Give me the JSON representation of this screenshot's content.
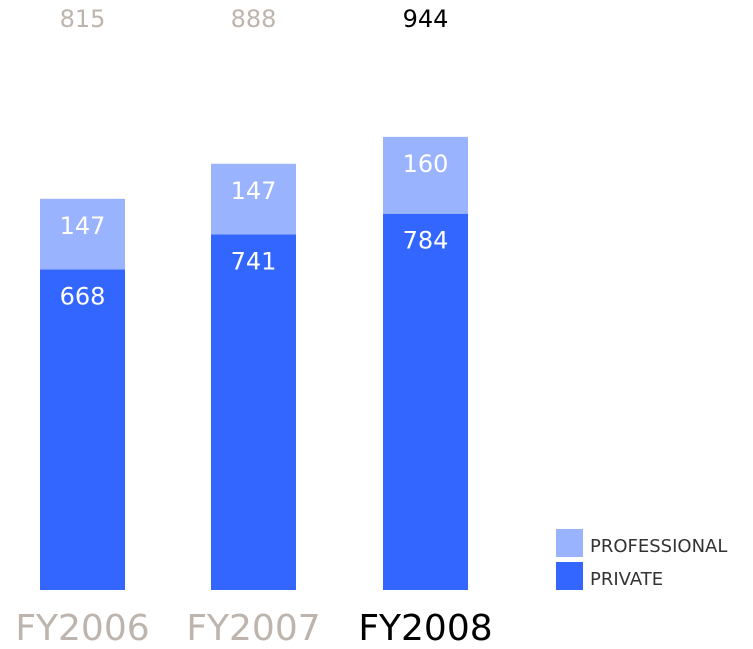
{
  "chart_data": {
    "type": "stacked_bar",
    "categories": [
      "FY2006",
      "FY2007",
      "FY2008"
    ],
    "series": [
      {
        "name": "PRIVATE",
        "color": "#3366ff",
        "values": [
          668,
          741,
          784
        ]
      },
      {
        "name": "PROFESSIONAL",
        "color": "#99b3ff",
        "values": [
          147,
          147,
          160
        ]
      }
    ],
    "totals": [
      815,
      888,
      944
    ],
    "label_colors": [
      "#bdb5ad",
      "#bdb5ad",
      "#000000"
    ],
    "ylim": [
      0,
      1200
    ],
    "grid": false
  }
}
